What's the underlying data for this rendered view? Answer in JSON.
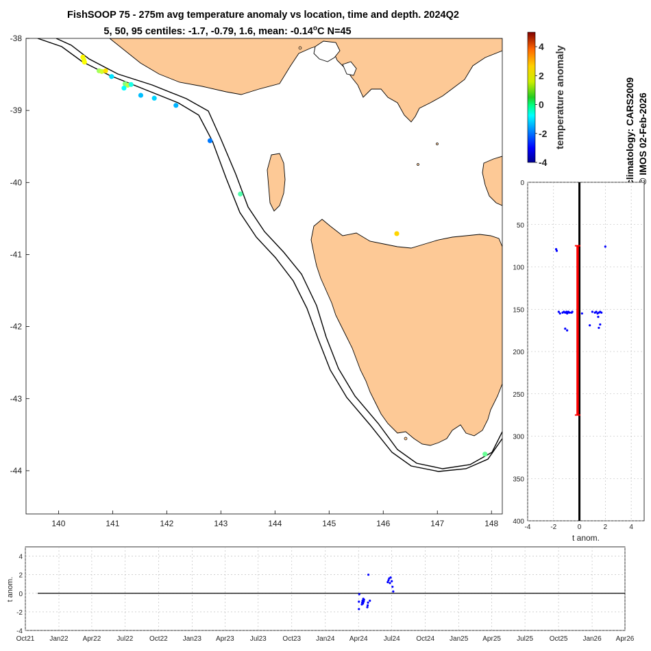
{
  "title": {
    "line1": "FishSOOP 75 - 275m avg temperature anomaly vs location, time and depth. 2024Q2",
    "line2_prefix": "5, 50, 95 centiles: -1.7, -0.79, 1.6, mean: -0.14",
    "line2_suffix": "C N=45",
    "degree_symbol": "o"
  },
  "credits": {
    "climatology": "climatology: CARS2009",
    "copyright": "© IMOS 02-Feb-2026"
  },
  "colors": {
    "land": "#fdc996",
    "coastline": "#000000",
    "contour": "#000000",
    "profile_points": "#0000ff",
    "mean_line": "#000000",
    "range_bar": "#ff0000",
    "timeseries_points": "#0000ff"
  },
  "chart_data": [
    {
      "type": "scatter",
      "xlim": [
        139.4,
        148.2
      ],
      "ylim": [
        -44.6,
        -38
      ],
      "x_ticks": [
        "140",
        "141",
        "142",
        "143",
        "144",
        "145",
        "146",
        "147",
        "148"
      ],
      "y_ticks": [
        "-38",
        "-39",
        "-40",
        "-41",
        "-42",
        "-43",
        "-44"
      ],
      "colorbar": {
        "label": "temperature anomaly",
        "range": [
          -4,
          5
        ],
        "ticks": [
          "-4",
          "-2",
          "0",
          "2",
          "4"
        ]
      },
      "points": [
        {
          "lon": 140.45,
          "lat": -38.26,
          "anomaly": 1.7
        },
        {
          "lon": 140.47,
          "lat": -38.3,
          "anomaly": 1.5
        },
        {
          "lon": 140.48,
          "lat": -38.33,
          "anomaly": 1.6
        },
        {
          "lon": 140.75,
          "lat": -38.45,
          "anomaly": 0.8
        },
        {
          "lon": 140.8,
          "lat": -38.46,
          "anomaly": 1.2
        },
        {
          "lon": 140.87,
          "lat": -38.45,
          "anomaly": 1.9
        },
        {
          "lon": 140.98,
          "lat": -38.53,
          "anomaly": -0.9
        },
        {
          "lon": 141.23,
          "lat": -38.63,
          "anomaly": 0.5
        },
        {
          "lon": 141.28,
          "lat": -38.65,
          "anomaly": 1.0
        },
        {
          "lon": 141.21,
          "lat": -38.69,
          "anomaly": -0.6
        },
        {
          "lon": 141.34,
          "lat": -38.64,
          "anomaly": -0.4
        },
        {
          "lon": 141.52,
          "lat": -38.79,
          "anomaly": -1.2
        },
        {
          "lon": 141.77,
          "lat": -38.83,
          "anomaly": -1.0
        },
        {
          "lon": 142.17,
          "lat": -38.93,
          "anomaly": -1.3
        },
        {
          "lon": 142.8,
          "lat": -39.42,
          "anomaly": -1.8
        },
        {
          "lon": 143.36,
          "lat": -40.16,
          "anomaly": 0.1
        },
        {
          "lon": 146.25,
          "lat": -40.71,
          "anomaly": 2.0
        },
        {
          "lon": 147.88,
          "lat": -43.77,
          "anomaly": 0.3
        }
      ]
    },
    {
      "type": "scatter",
      "xlabel": "t anom.",
      "xlim": [
        -4,
        5
      ],
      "ylim": [
        400,
        0
      ],
      "x_ticks": [
        "-4",
        "-2",
        "0",
        "2",
        "4"
      ],
      "y_ticks": [
        "0",
        "50",
        "100",
        "150",
        "200",
        "250",
        "300",
        "350",
        "400"
      ],
      "mean_anomaly": -0.14,
      "depth_range": [
        75,
        275
      ],
      "points": [
        {
          "anomaly": -1.8,
          "depth": 79
        },
        {
          "anomaly": -1.75,
          "depth": 81
        },
        {
          "anomaly": 2.0,
          "depth": 76
        },
        {
          "anomaly": -1.6,
          "depth": 153
        },
        {
          "anomaly": -1.5,
          "depth": 155
        },
        {
          "anomaly": -1.3,
          "depth": 154
        },
        {
          "anomaly": -1.2,
          "depth": 153
        },
        {
          "anomaly": -1.1,
          "depth": 154
        },
        {
          "anomaly": -1.0,
          "depth": 153
        },
        {
          "anomaly": -0.95,
          "depth": 155
        },
        {
          "anomaly": -0.9,
          "depth": 154
        },
        {
          "anomaly": -0.85,
          "depth": 153
        },
        {
          "anomaly": -0.75,
          "depth": 154
        },
        {
          "anomaly": -0.6,
          "depth": 154
        },
        {
          "anomaly": -0.55,
          "depth": 153
        },
        {
          "anomaly": 0.2,
          "depth": 155
        },
        {
          "anomaly": 1.0,
          "depth": 153
        },
        {
          "anomaly": 1.2,
          "depth": 154
        },
        {
          "anomaly": 1.3,
          "depth": 153
        },
        {
          "anomaly": 1.4,
          "depth": 155
        },
        {
          "anomaly": 1.5,
          "depth": 154
        },
        {
          "anomaly": 1.6,
          "depth": 153
        },
        {
          "anomaly": 1.7,
          "depth": 154
        },
        {
          "anomaly": 1.45,
          "depth": 159
        },
        {
          "anomaly": 1.5,
          "depth": 172
        },
        {
          "anomaly": 0.8,
          "depth": 169
        },
        {
          "anomaly": 1.6,
          "depth": 168
        },
        {
          "anomaly": -1.1,
          "depth": 173
        },
        {
          "anomaly": -0.95,
          "depth": 175
        }
      ]
    },
    {
      "type": "scatter",
      "ylabel": "t anom.",
      "ylim": [
        -4,
        5
      ],
      "y_ticks": [
        "-4",
        "-2",
        "0",
        "2",
        "4"
      ],
      "x_ticks": [
        "Oct21",
        "Jan22",
        "Apr22",
        "Jul22",
        "Oct22",
        "Jan23",
        "Apr23",
        "Jul23",
        "Oct23",
        "Jan24",
        "Apr24",
        "Jul24",
        "Oct24",
        "Jan25",
        "Apr25",
        "Jul25",
        "Oct25",
        "Jan26",
        "Apr26"
      ],
      "x_range": [
        "Oct21",
        "Apr26"
      ],
      "points": [
        {
          "date": "2024-04-02",
          "anomaly": -1.7
        },
        {
          "date": "2024-04-02",
          "anomaly": -0.9
        },
        {
          "date": "2024-04-03",
          "anomaly": -0.1
        },
        {
          "date": "2024-04-10",
          "anomaly": -1.2
        },
        {
          "date": "2024-04-11",
          "anomaly": -1.0
        },
        {
          "date": "2024-04-12",
          "anomaly": -0.8
        },
        {
          "date": "2024-04-13",
          "anomaly": -1.1
        },
        {
          "date": "2024-04-14",
          "anomaly": -0.6
        },
        {
          "date": "2024-04-15",
          "anomaly": -0.9
        },
        {
          "date": "2024-04-16",
          "anomaly": -0.7
        },
        {
          "date": "2024-04-25",
          "anomaly": -1.5
        },
        {
          "date": "2024-04-26",
          "anomaly": -1.3
        },
        {
          "date": "2024-04-27",
          "anomaly": -1.0
        },
        {
          "date": "2024-04-28",
          "anomaly": 2.0
        },
        {
          "date": "2024-05-02",
          "anomaly": -0.8
        },
        {
          "date": "2024-06-20",
          "anomaly": 1.2
        },
        {
          "date": "2024-06-22",
          "anomaly": 1.4
        },
        {
          "date": "2024-06-24",
          "anomaly": 1.6
        },
        {
          "date": "2024-06-26",
          "anomaly": 1.1
        },
        {
          "date": "2024-06-28",
          "anomaly": 1.7
        },
        {
          "date": "2024-07-01",
          "anomaly": 1.3
        },
        {
          "date": "2024-07-03",
          "anomaly": 0.7
        },
        {
          "date": "2024-07-05",
          "anomaly": 0.2
        }
      ]
    }
  ]
}
